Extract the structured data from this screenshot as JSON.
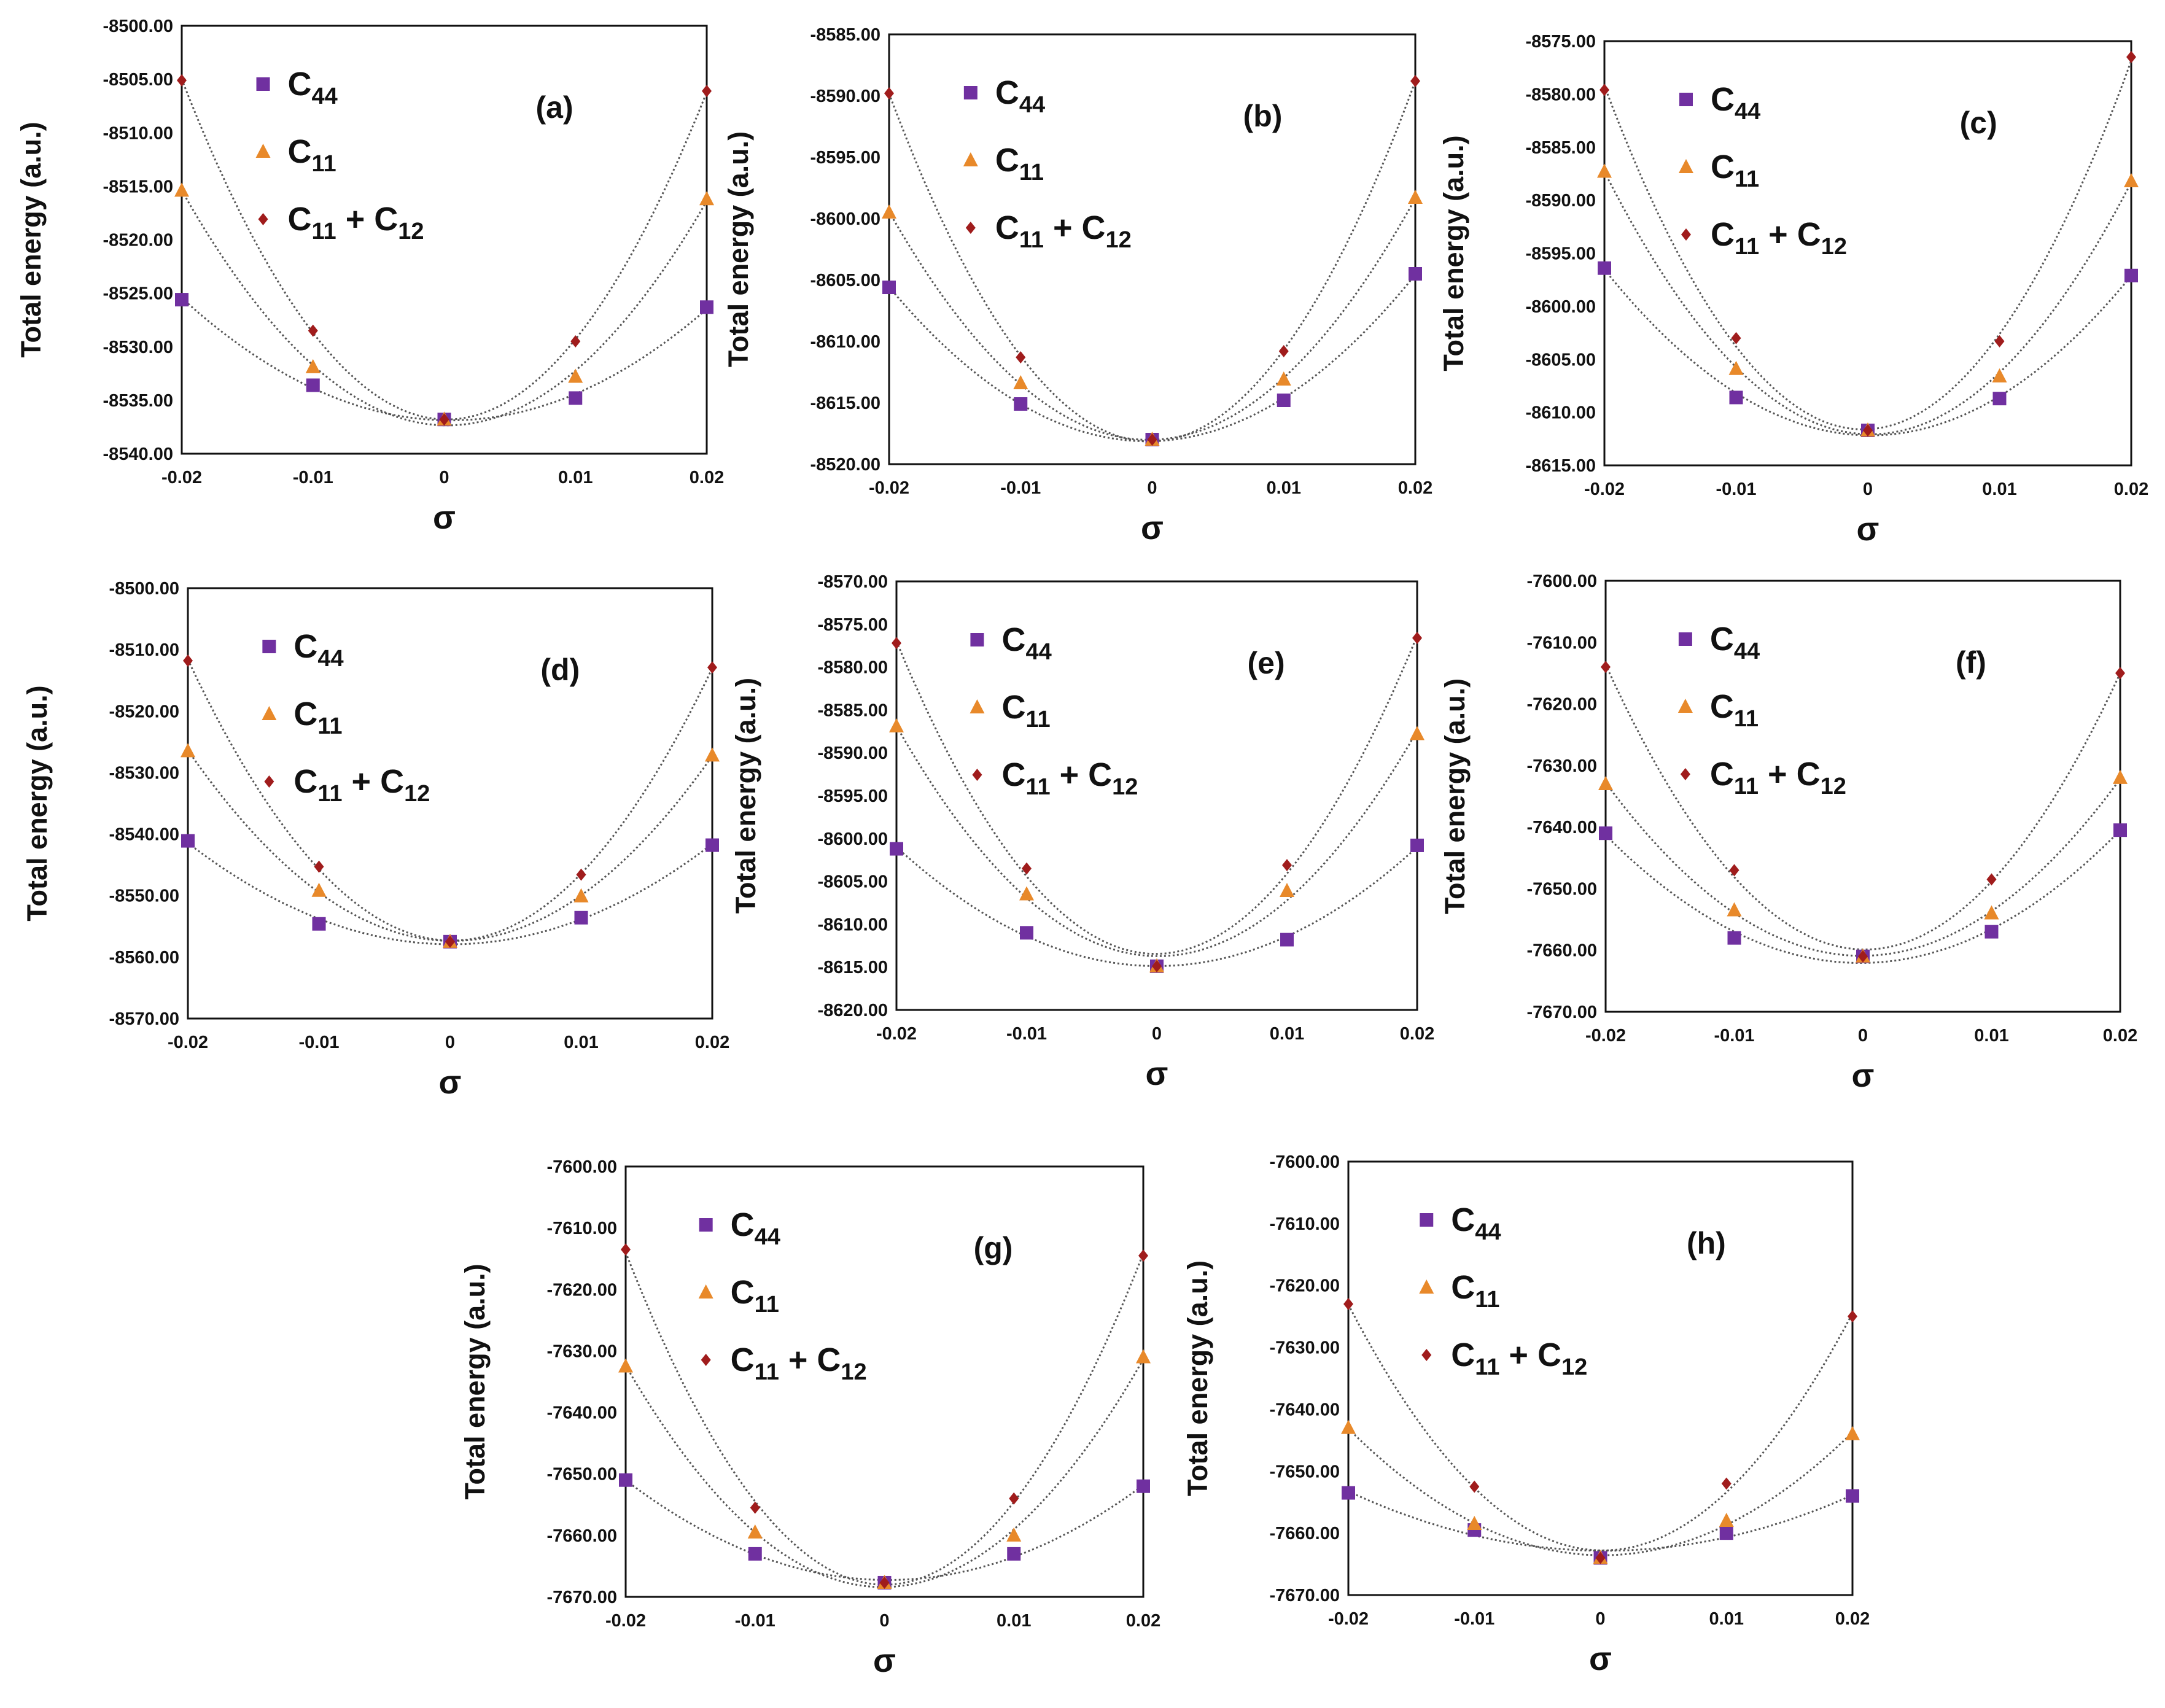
{
  "chart_data": [
    {
      "panel": "(a)",
      "type": "scatter",
      "xlabel": "σ",
      "ylabel": "Total energy (a.u.)",
      "xticks": [
        "-0.02",
        "-0.01",
        "0",
        "0.01",
        "0.02"
      ],
      "yticks": [
        "-8500.00",
        "-8505.00",
        "-8510.00",
        "-8515.00",
        "-8520.00",
        "-8525.00",
        "-8530.00",
        "-8535.00",
        "-8540.00"
      ],
      "ylim": [
        -8540,
        -8500
      ],
      "x": [
        -0.02,
        -0.01,
        0,
        0.01,
        0.02
      ],
      "series": [
        {
          "name": "C44",
          "marker": "square",
          "color": "#7030a0",
          "values": [
            -8525.6,
            -8533.6,
            -8536.8,
            -8534.8,
            -8526.3
          ]
        },
        {
          "name": "C11",
          "marker": "triangle",
          "color": "#e8892a",
          "values": [
            -8515.4,
            -8531.9,
            -8536.8,
            -8532.8,
            -8516.2
          ]
        },
        {
          "name": "C11 + C12",
          "marker": "diamond",
          "color": "#a01c1c",
          "values": [
            -8505.1,
            -8528.5,
            -8536.8,
            -8529.5,
            -8506.1
          ]
        }
      ]
    },
    {
      "panel": "(b)",
      "type": "scatter",
      "xlabel": "σ",
      "ylabel": "Total energy (a.u.)",
      "xticks": [
        "-0.02",
        "-0.01",
        "0",
        "0.01",
        "0.02"
      ],
      "yticks": [
        "-8585.00",
        "-8590.00",
        "-8595.00",
        "-8600.00",
        "-8605.00",
        "-8610.00",
        "-8615.00",
        "-8520.00"
      ],
      "ylim": [
        -8620,
        -8585
      ],
      "x": [
        -0.02,
        -0.01,
        0,
        0.01,
        0.02
      ],
      "series": [
        {
          "name": "C44",
          "marker": "square",
          "color": "#7030a0",
          "values": [
            -8605.6,
            -8615.1,
            -8618.0,
            -8614.8,
            -8604.5
          ]
        },
        {
          "name": "C11",
          "marker": "triangle",
          "color": "#e8892a",
          "values": [
            -8599.5,
            -8613.4,
            -8618.0,
            -8613.1,
            -8598.3
          ]
        },
        {
          "name": "C11 + C12",
          "marker": "diamond",
          "color": "#a01c1c",
          "values": [
            -8589.8,
            -8611.3,
            -8618.0,
            -8610.8,
            -8588.8
          ]
        }
      ]
    },
    {
      "panel": "(c)",
      "type": "scatter",
      "xlabel": "σ",
      "ylabel": "Total energy (a.u.)",
      "xticks": [
        "-0.02",
        "-0.01",
        "0",
        "0.01",
        "0.02"
      ],
      "yticks": [
        "-8575.00",
        "-8580.00",
        "-8585.00",
        "-8590.00",
        "-8595.00",
        "-8600.00",
        "-8605.00",
        "-8610.00",
        "-8615.00"
      ],
      "ylim": [
        -8615,
        -8575
      ],
      "x": [
        -0.02,
        -0.01,
        0,
        0.01,
        0.02
      ],
      "series": [
        {
          "name": "C44",
          "marker": "square",
          "color": "#7030a0",
          "values": [
            -8596.4,
            -8608.6,
            -8611.7,
            -8608.7,
            -8597.1
          ]
        },
        {
          "name": "C11",
          "marker": "triangle",
          "color": "#e8892a",
          "values": [
            -8587.3,
            -8605.9,
            -8611.7,
            -8606.6,
            -8588.2
          ]
        },
        {
          "name": "C11 + C12",
          "marker": "diamond",
          "color": "#a01c1c",
          "values": [
            -8579.6,
            -8603.0,
            -8611.7,
            -8603.3,
            -8576.5
          ]
        }
      ]
    },
    {
      "panel": "(d)",
      "type": "scatter",
      "xlabel": "σ",
      "ylabel": "Total energy (a.u.)",
      "xticks": [
        "-0.02",
        "-0.01",
        "0",
        "0.01",
        "0.02"
      ],
      "yticks": [
        "-8500.00",
        "-8510.00",
        "-8520.00",
        "-8530.00",
        "-8540.00",
        "-8550.00",
        "-8560.00",
        "-8570.00"
      ],
      "ylim": [
        -8570,
        -8500
      ],
      "x": [
        -0.02,
        -0.01,
        0,
        0.01,
        0.02
      ],
      "series": [
        {
          "name": "C44",
          "marker": "square",
          "color": "#7030a0",
          "values": [
            -8541.1,
            -8554.6,
            -8557.5,
            -8553.6,
            -8541.8
          ]
        },
        {
          "name": "C11",
          "marker": "triangle",
          "color": "#e8892a",
          "values": [
            -8526.5,
            -8549.2,
            -8557.5,
            -8550.1,
            -8527.2
          ]
        },
        {
          "name": "C11 + C12",
          "marker": "diamond",
          "color": "#a01c1c",
          "values": [
            -8511.8,
            -8545.3,
            -8557.5,
            -8546.6,
            -8512.9
          ]
        }
      ]
    },
    {
      "panel": "(e)",
      "type": "scatter",
      "xlabel": "σ",
      "ylabel": "Total energy (a.u.)",
      "xticks": [
        "-0.02",
        "-0.01",
        "0",
        "0.01",
        "0.02"
      ],
      "yticks": [
        "-8570.00",
        "-8575.00",
        "-8580.00",
        "-8585.00",
        "-8590.00",
        "-8595.00",
        "-8600.00",
        "-8605.00",
        "-8610.00",
        "-8615.00",
        "-8620.00"
      ],
      "ylim": [
        -8620,
        -8570
      ],
      "x": [
        -0.02,
        -0.01,
        0,
        0.01,
        0.02
      ],
      "series": [
        {
          "name": "C44",
          "marker": "square",
          "color": "#7030a0",
          "values": [
            -8601.2,
            -8611.0,
            -8614.9,
            -8611.8,
            -8600.8
          ]
        },
        {
          "name": "C11",
          "marker": "triangle",
          "color": "#e8892a",
          "values": [
            -8586.9,
            -8606.5,
            -8614.9,
            -8606.1,
            -8587.8
          ]
        },
        {
          "name": "C11 + C12",
          "marker": "diamond",
          "color": "#a01c1c",
          "values": [
            -8577.2,
            -8603.5,
            -8614.9,
            -8603.1,
            -8576.6
          ]
        }
      ]
    },
    {
      "panel": "(f)",
      "type": "scatter",
      "xlabel": "σ",
      "ylabel": "Total energy (a.u.)",
      "xticks": [
        "-0.02",
        "-0.01",
        "0",
        "0.01",
        "0.02"
      ],
      "yticks": [
        "-7600.00",
        "-7610.00",
        "-7620.00",
        "-7630.00",
        "-7640.00",
        "-7650.00",
        "-7660.00",
        "-7670.00"
      ],
      "ylim": [
        -7670,
        -7600
      ],
      "x": [
        -0.02,
        -0.01,
        0,
        0.01,
        0.02
      ],
      "series": [
        {
          "name": "C44",
          "marker": "square",
          "color": "#7030a0",
          "values": [
            -7641.0,
            -7658.0,
            -7661.0,
            -7657.0,
            -7640.5
          ]
        },
        {
          "name": "C11",
          "marker": "triangle",
          "color": "#e8892a",
          "values": [
            -7633.0,
            -7653.5,
            -7661.0,
            -7654.0,
            -7632.0
          ]
        },
        {
          "name": "C11 + C12",
          "marker": "diamond",
          "color": "#a01c1c",
          "values": [
            -7614.0,
            -7647.0,
            -7661.0,
            -7648.5,
            -7615.0
          ]
        }
      ]
    },
    {
      "panel": "(g)",
      "type": "scatter",
      "xlabel": "σ",
      "ylabel": "Total energy (a.u.)",
      "xticks": [
        "-0.02",
        "-0.01",
        "0",
        "0.01",
        "0.02"
      ],
      "yticks": [
        "-7600.00",
        "-7610.00",
        "-7620.00",
        "-7630.00",
        "-7640.00",
        "-7650.00",
        "-7660.00",
        "-7670.00"
      ],
      "ylim": [
        -7670,
        -7600
      ],
      "x": [
        -0.02,
        -0.01,
        0,
        0.01,
        0.02
      ],
      "series": [
        {
          "name": "C44",
          "marker": "square",
          "color": "#7030a0",
          "values": [
            -7651.0,
            -7663.0,
            -7667.7,
            -7663.0,
            -7652.0
          ]
        },
        {
          "name": "C11",
          "marker": "triangle",
          "color": "#e8892a",
          "values": [
            -7632.5,
            -7659.5,
            -7667.7,
            -7660.0,
            -7631.0
          ]
        },
        {
          "name": "C11 + C12",
          "marker": "diamond",
          "color": "#a01c1c",
          "values": [
            -7613.5,
            -7655.5,
            -7667.7,
            -7654.0,
            -7614.5
          ]
        }
      ]
    },
    {
      "panel": "(h)",
      "type": "scatter",
      "xlabel": "σ",
      "ylabel": "Total energy (a.u.)",
      "xticks": [
        "-0.02",
        "-0.01",
        "0",
        "0.01",
        "0.02"
      ],
      "yticks": [
        "-7600.00",
        "-7610.00",
        "-7620.00",
        "-7630.00",
        "-7640.00",
        "-7650.00",
        "-7660.00",
        "-7670.00"
      ],
      "ylim": [
        -7670,
        -7600
      ],
      "x": [
        -0.02,
        -0.01,
        0,
        0.01,
        0.02
      ],
      "series": [
        {
          "name": "C44",
          "marker": "square",
          "color": "#7030a0",
          "values": [
            -7653.5,
            -7659.5,
            -7664.0,
            -7660.0,
            -7654.0
          ]
        },
        {
          "name": "C11",
          "marker": "triangle",
          "color": "#e8892a",
          "values": [
            -7643.0,
            -7658.5,
            -7664.0,
            -7658.0,
            -7644.0
          ]
        },
        {
          "name": "C11 + C12",
          "marker": "diamond",
          "color": "#a01c1c",
          "values": [
            -7623.0,
            -7652.5,
            -7664.0,
            -7652.0,
            -7625.0
          ]
        }
      ]
    }
  ]
}
